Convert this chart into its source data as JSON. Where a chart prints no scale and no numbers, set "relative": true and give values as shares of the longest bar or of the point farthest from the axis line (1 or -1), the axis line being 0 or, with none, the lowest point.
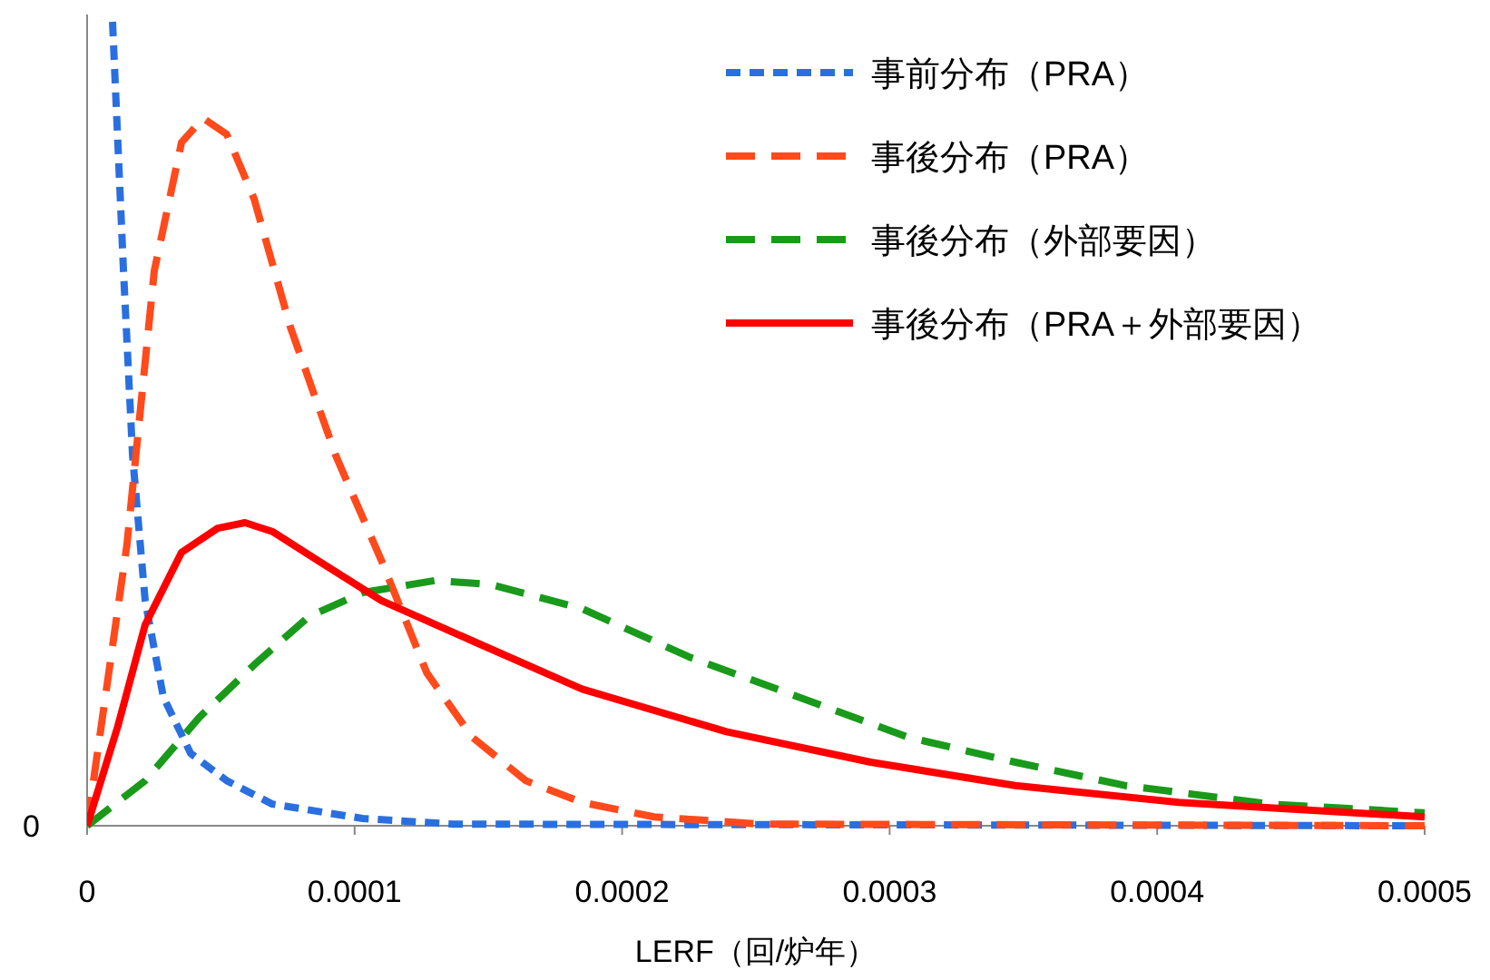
{
  "chart_data": {
    "type": "line",
    "relative": true,
    "xlabel": "LERF（回/炉年）",
    "xlim": [
      0,
      0.0005
    ],
    "xticks": [
      0,
      0.0001,
      0.0002,
      0.0003,
      0.0004,
      0.0005
    ],
    "legend": "top right",
    "annotations": [
      "0"
    ],
    "series": [
      {
        "name": "事前分布（PRA）",
        "color": "#2a6fe0",
        "line_style": "dotted",
        "x": [
          9.5e-06,
          1.36e-05,
          1.7e-05,
          2.17e-05,
          2.85e-05,
          3.87e-05,
          5.22e-05,
          6.92e-05,
          0.000103,
          0.000137,
          0.0005
        ],
        "values": [
          1,
          0.69,
          0.46,
          0.28,
          0.16,
          0.09,
          0.056,
          0.027,
          0.009,
          0.002,
          0
        ]
      },
      {
        "name": "事後分布（PRA）",
        "color": "#ff4a1c",
        "line_style": "dashed",
        "x": [
          0,
          1.49e-05,
          2.51e-05,
          3.53e-05,
          4.34e-05,
          5.22e-05,
          6.24e-05,
          7.6e-05,
          9.3e-05,
          0.00011,
          0.000127,
          0.000144,
          0.000164,
          0.000185,
          0.000212,
          0.000252,
          0.0005
        ],
        "values": [
          0,
          0.35,
          0.69,
          0.85,
          0.88,
          0.86,
          0.78,
          0.62,
          0.46,
          0.33,
          0.19,
          0.11,
          0.056,
          0.029,
          0.011,
          0.002,
          0
        ]
      },
      {
        "name": "事後分布（外部要因）",
        "color": "#1a9a1a",
        "line_style": "dashed",
        "x": [
          0,
          2.17e-05,
          4.2e-05,
          6.24e-05,
          8.28e-05,
          0.000103,
          0.00013,
          0.000151,
          0.000185,
          0.000225,
          0.000266,
          0.000307,
          0.000347,
          0.000388,
          0.000442,
          0.0005
        ],
        "values": [
          0,
          0.056,
          0.135,
          0.2,
          0.26,
          0.29,
          0.305,
          0.3,
          0.27,
          0.21,
          0.16,
          0.11,
          0.079,
          0.05,
          0.027,
          0.016
        ]
      },
      {
        "name": "事後分布（PRA＋外部要因）",
        "color": "#ff0000",
        "line_style": "solid",
        "x": [
          0,
          1.15e-05,
          2.17e-05,
          3.53e-05,
          4.88e-05,
          5.9e-05,
          6.92e-05,
          8.62e-05,
          0.00011,
          0.000144,
          0.000185,
          0.000239,
          0.000293,
          0.000347,
          0.000408,
          0.0005
        ],
        "values": [
          0,
          0.124,
          0.25,
          0.34,
          0.37,
          0.377,
          0.366,
          0.33,
          0.28,
          0.23,
          0.17,
          0.117,
          0.079,
          0.05,
          0.029,
          0.011
        ]
      }
    ]
  }
}
